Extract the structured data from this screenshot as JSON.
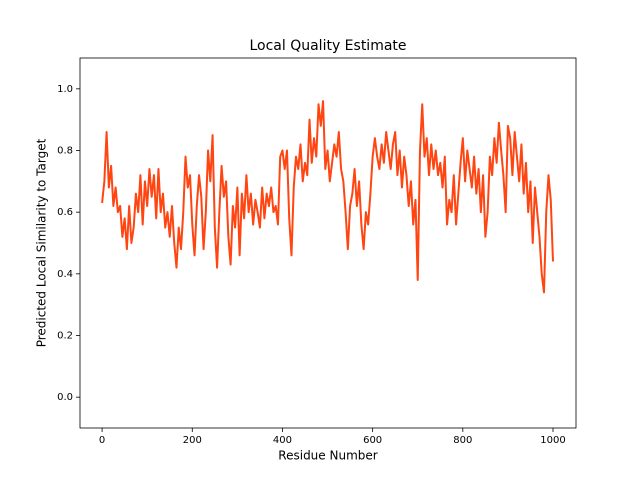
{
  "chart_data": {
    "type": "line",
    "title": "Local Quality Estimate",
    "xlabel": "Residue Number",
    "ylabel": "Predicted Local Similarity to Target",
    "xlim": [
      -49,
      1051
    ],
    "ylim": [
      -0.1,
      1.1
    ],
    "xticks": [
      0,
      200,
      400,
      600,
      800,
      1000
    ],
    "yticks": [
      {
        "value": 0,
        "label": "0.0"
      },
      0.2,
      0.4,
      0.6,
      0.8,
      {
        "value": 1,
        "label": "1.0"
      }
    ],
    "series": [
      {
        "name": "Local Quality Estimate",
        "color": "#ff4512",
        "x": [
          0,
          5,
          10,
          15,
          20,
          25,
          30,
          35,
          40,
          45,
          50,
          55,
          60,
          65,
          70,
          75,
          80,
          85,
          90,
          95,
          100,
          105,
          110,
          115,
          120,
          125,
          130,
          135,
          140,
          145,
          150,
          155,
          160,
          165,
          170,
          175,
          180,
          185,
          190,
          195,
          200,
          205,
          210,
          215,
          220,
          225,
          230,
          235,
          240,
          245,
          250,
          255,
          260,
          265,
          270,
          275,
          280,
          285,
          290,
          295,
          300,
          305,
          310,
          315,
          320,
          325,
          330,
          335,
          340,
          345,
          350,
          355,
          360,
          365,
          370,
          375,
          380,
          385,
          390,
          395,
          400,
          405,
          410,
          415,
          420,
          425,
          430,
          435,
          440,
          445,
          450,
          455,
          460,
          465,
          470,
          475,
          480,
          485,
          490,
          495,
          500,
          505,
          510,
          515,
          520,
          525,
          530,
          535,
          540,
          545,
          550,
          555,
          560,
          565,
          570,
          575,
          580,
          585,
          590,
          595,
          600,
          605,
          610,
          615,
          620,
          625,
          630,
          635,
          640,
          645,
          650,
          655,
          660,
          665,
          670,
          675,
          680,
          685,
          690,
          695,
          700,
          705,
          710,
          715,
          720,
          725,
          730,
          735,
          740,
          745,
          750,
          755,
          760,
          765,
          770,
          775,
          780,
          785,
          790,
          795,
          800,
          805,
          810,
          815,
          820,
          825,
          830,
          835,
          840,
          845,
          850,
          855,
          860,
          865,
          870,
          875,
          880,
          885,
          890,
          895,
          900,
          905,
          910,
          915,
          920,
          925,
          930,
          935,
          940,
          945,
          950,
          955,
          960,
          965,
          970,
          975,
          980,
          985,
          990,
          995,
          1000
        ],
        "values": [
          0.63,
          0.7,
          0.86,
          0.68,
          0.75,
          0.62,
          0.68,
          0.6,
          0.62,
          0.52,
          0.58,
          0.48,
          0.62,
          0.5,
          0.55,
          0.66,
          0.6,
          0.72,
          0.56,
          0.7,
          0.62,
          0.74,
          0.65,
          0.72,
          0.58,
          0.74,
          0.6,
          0.66,
          0.55,
          0.6,
          0.52,
          0.62,
          0.5,
          0.42,
          0.55,
          0.48,
          0.6,
          0.78,
          0.68,
          0.72,
          0.56,
          0.46,
          0.62,
          0.72,
          0.65,
          0.48,
          0.6,
          0.8,
          0.7,
          0.85,
          0.55,
          0.42,
          0.6,
          0.75,
          0.65,
          0.7,
          0.52,
          0.43,
          0.62,
          0.55,
          0.68,
          0.46,
          0.66,
          0.58,
          0.72,
          0.6,
          0.66,
          0.56,
          0.64,
          0.6,
          0.55,
          0.68,
          0.58,
          0.66,
          0.62,
          0.68,
          0.6,
          0.62,
          0.56,
          0.78,
          0.8,
          0.74,
          0.8,
          0.58,
          0.46,
          0.68,
          0.78,
          0.74,
          0.82,
          0.7,
          0.76,
          0.72,
          0.9,
          0.76,
          0.84,
          0.78,
          0.95,
          0.88,
          0.96,
          0.74,
          0.8,
          0.7,
          0.76,
          0.82,
          0.78,
          0.86,
          0.74,
          0.7,
          0.6,
          0.48,
          0.62,
          0.66,
          0.74,
          0.62,
          0.7,
          0.56,
          0.48,
          0.6,
          0.56,
          0.66,
          0.78,
          0.84,
          0.78,
          0.74,
          0.82,
          0.76,
          0.86,
          0.8,
          0.74,
          0.82,
          0.86,
          0.72,
          0.8,
          0.68,
          0.78,
          0.72,
          0.62,
          0.7,
          0.56,
          0.64,
          0.38,
          0.8,
          0.95,
          0.78,
          0.84,
          0.72,
          0.82,
          0.74,
          0.8,
          0.72,
          0.76,
          0.68,
          0.78,
          0.56,
          0.64,
          0.6,
          0.72,
          0.56,
          0.66,
          0.76,
          0.84,
          0.7,
          0.8,
          0.74,
          0.68,
          0.78,
          0.66,
          0.74,
          0.6,
          0.72,
          0.52,
          0.6,
          0.78,
          0.72,
          0.84,
          0.76,
          0.89,
          0.8,
          0.72,
          0.6,
          0.88,
          0.84,
          0.72,
          0.86,
          0.78,
          0.7,
          0.82,
          0.66,
          0.76,
          0.6,
          0.7,
          0.5,
          0.68,
          0.6,
          0.52,
          0.4,
          0.34,
          0.6,
          0.72,
          0.64,
          0.44
        ]
      }
    ]
  }
}
